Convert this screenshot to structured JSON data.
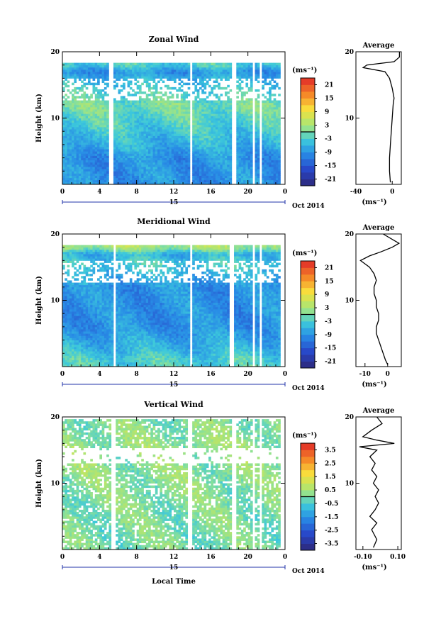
{
  "chart_data": [
    {
      "id": "zonal",
      "type": "heatmap",
      "title": "Zonal Wind",
      "ylabel": "Height (km)",
      "xlabel": "",
      "x_ticks": [
        "0",
        "4",
        "8",
        "12",
        "16",
        "20",
        "0"
      ],
      "x_range_hours": [
        0,
        24
      ],
      "y_ticks": [
        "20",
        "10"
      ],
      "ylim": [
        0,
        20
      ],
      "date_day": "15",
      "date_suffix": "Oct 2014",
      "unit": "(ms⁻¹)",
      "colorbar": {
        "min": -24,
        "max": 24,
        "ticks": [
          "21",
          "15",
          "9",
          "3",
          "-3",
          "-9",
          "-15",
          "-21"
        ],
        "tick_values": [
          21,
          15,
          9,
          3,
          -3,
          -9,
          -15,
          -21
        ]
      },
      "field": {
        "profile": [
          [
            1,
            -9
          ],
          [
            4,
            -9
          ],
          [
            6,
            -6
          ],
          [
            9,
            -3
          ],
          [
            12,
            0
          ],
          [
            14,
            -3
          ],
          [
            16,
            -6
          ],
          [
            17,
            -9
          ],
          [
            18,
            -3
          ]
        ]
      },
      "gaps_hours": [
        [
          5.1,
          5.6
        ],
        [
          13.7,
          14.0
        ],
        [
          18.2,
          18.7
        ],
        [
          20.4,
          20.7
        ],
        [
          21.3,
          21.6
        ],
        [
          23.6,
          24
        ]
      ],
      "average": {
        "title": "Average",
        "xlim": [
          -40,
          10
        ],
        "x_ticks": [
          "-40",
          "0"
        ],
        "x_tick_values": [
          -40,
          0
        ],
        "y_ticks": [
          "20",
          "10"
        ],
        "xlabel": "(ms⁻¹)",
        "profile": [
          [
            0.3,
            -2
          ],
          [
            2,
            -3
          ],
          [
            4,
            -3
          ],
          [
            6,
            -2
          ],
          [
            8,
            -1
          ],
          [
            10,
            0
          ],
          [
            12,
            1
          ],
          [
            13,
            2
          ],
          [
            14.5,
            0
          ],
          [
            16,
            -3
          ],
          [
            17,
            -8
          ],
          [
            17.6,
            -32
          ],
          [
            18,
            -28
          ],
          [
            18.5,
            2
          ],
          [
            19.2,
            8
          ],
          [
            20,
            8
          ]
        ]
      }
    },
    {
      "id": "meridional",
      "type": "heatmap",
      "title": "Meridional Wind",
      "ylabel": "Height (km)",
      "xlabel": "",
      "x_ticks": [
        "0",
        "4",
        "8",
        "12",
        "16",
        "20",
        "0"
      ],
      "x_range_hours": [
        0,
        24
      ],
      "y_ticks": [
        "20",
        "10"
      ],
      "ylim": [
        0,
        20
      ],
      "date_day": "15",
      "date_suffix": "Oct 2014",
      "unit": "(ms⁻¹)",
      "colorbar": {
        "min": -24,
        "max": 24,
        "ticks": [
          "21",
          "15",
          "9",
          "3",
          "-3",
          "-9",
          "-15",
          "-21"
        ],
        "tick_values": [
          21,
          15,
          9,
          3,
          -3,
          -9,
          -15,
          -21
        ]
      },
      "field": {
        "profile": [
          [
            1,
            -3
          ],
          [
            3,
            -6
          ],
          [
            6,
            -9
          ],
          [
            9,
            -9
          ],
          [
            12,
            -9
          ],
          [
            14,
            -6
          ],
          [
            15.5,
            -3
          ],
          [
            17,
            -6
          ],
          [
            18,
            3
          ]
        ]
      },
      "gaps_hours": [
        [
          5.4,
          5.8
        ],
        [
          13.7,
          14.0
        ],
        [
          18.1,
          18.6
        ],
        [
          20.4,
          20.7
        ],
        [
          21.3,
          21.6
        ],
        [
          23.6,
          24
        ]
      ],
      "average": {
        "title": "Average",
        "xlim": [
          -14,
          6
        ],
        "x_ticks": [
          "-10",
          "0"
        ],
        "x_tick_values": [
          -10,
          0
        ],
        "y_ticks": [
          "20",
          "10"
        ],
        "xlabel": "(ms⁻¹)",
        "profile": [
          [
            0.3,
            0
          ],
          [
            1,
            -1
          ],
          [
            2,
            -2
          ],
          [
            3,
            -3
          ],
          [
            4,
            -4
          ],
          [
            5,
            -5
          ],
          [
            6,
            -5
          ],
          [
            7,
            -4
          ],
          [
            8,
            -4
          ],
          [
            9,
            -5
          ],
          [
            10,
            -5
          ],
          [
            11,
            -6
          ],
          [
            12,
            -6
          ],
          [
            13,
            -5
          ],
          [
            14,
            -6
          ],
          [
            15,
            -8
          ],
          [
            15.5,
            -10
          ],
          [
            16,
            -12
          ],
          [
            16.7,
            -8
          ],
          [
            17.3,
            -3
          ],
          [
            18,
            2
          ],
          [
            18.6,
            5
          ],
          [
            19,
            3
          ],
          [
            20,
            -2
          ]
        ]
      }
    },
    {
      "id": "vertical",
      "type": "heatmap",
      "title": "Vertical Wind",
      "ylabel": "Height (km)",
      "xlabel": "Local Time",
      "x_ticks": [
        "0",
        "4",
        "8",
        "12",
        "16",
        "20",
        "0"
      ],
      "x_range_hours": [
        0,
        24
      ],
      "y_ticks": [
        "20",
        "10"
      ],
      "ylim": [
        0,
        20
      ],
      "date_day": "15",
      "date_suffix": "Oct 2014",
      "unit": "(ms⁻¹)",
      "colorbar": {
        "min": -4,
        "max": 4,
        "ticks": [
          "3.5",
          "2.5",
          "1.5",
          "0.5",
          "-0.5",
          "-1.5",
          "-2.5",
          "-3.5"
        ],
        "tick_values": [
          3.5,
          2.5,
          1.5,
          0.5,
          -0.5,
          -1.5,
          -2.5,
          -3.5
        ]
      },
      "field": {
        "profile": [
          [
            1,
            0
          ],
          [
            8,
            0.1
          ],
          [
            12,
            0.2
          ],
          [
            15,
            0.3
          ],
          [
            17,
            0.2
          ],
          [
            20,
            0.1
          ]
        ]
      },
      "gaps_hours": [
        [
          5.3,
          5.7
        ],
        [
          13.6,
          13.9
        ],
        [
          18.2,
          18.7
        ],
        [
          20.5,
          20.8
        ],
        [
          21.3,
          21.6
        ],
        [
          23.6,
          24
        ]
      ],
      "average": {
        "title": "Average",
        "xlim": [
          -0.14,
          0.12
        ],
        "x_ticks": [
          "-0.10",
          "0.10"
        ],
        "x_tick_values": [
          -0.1,
          0.1
        ],
        "y_ticks": [
          "20",
          "10"
        ],
        "xlabel": "(ms⁻¹)",
        "profile": [
          [
            0.3,
            -0.04
          ],
          [
            1.5,
            -0.02
          ],
          [
            3,
            -0.05
          ],
          [
            4,
            -0.02
          ],
          [
            5,
            -0.06
          ],
          [
            6,
            -0.03
          ],
          [
            7,
            -0.01
          ],
          [
            8,
            -0.03
          ],
          [
            9,
            -0.01
          ],
          [
            10,
            -0.04
          ],
          [
            11,
            -0.02
          ],
          [
            12,
            -0.05
          ],
          [
            13,
            -0.03
          ],
          [
            14,
            -0.06
          ],
          [
            15,
            -0.02
          ],
          [
            15.5,
            -0.12
          ],
          [
            16,
            0.08
          ],
          [
            16.5,
            -0.02
          ],
          [
            17,
            -0.1
          ],
          [
            18,
            -0.05
          ],
          [
            19,
            0.01
          ],
          [
            20,
            -0.02
          ]
        ]
      }
    }
  ]
}
